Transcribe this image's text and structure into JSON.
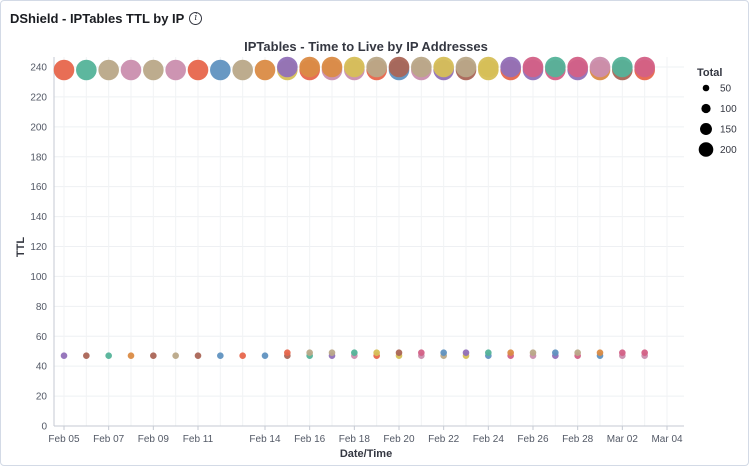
{
  "panel": {
    "title": "DShield - IPTables TTL by IP",
    "info_icon": "info-icon"
  },
  "chart_data": {
    "type": "scatter",
    "title": "IPTables - Time to Live by IP Addresses",
    "xlabel": "Date/Time",
    "ylabel": "TTL",
    "ylim": [
      0,
      240
    ],
    "yticks": [
      0,
      20,
      40,
      60,
      80,
      100,
      120,
      140,
      160,
      180,
      200,
      220,
      240
    ],
    "x": [
      "Feb 05",
      "Feb 06",
      "Feb 07",
      "Feb 08",
      "Feb 09",
      "Feb 10",
      "Feb 11",
      "Feb 12",
      "Feb 13",
      "Feb 14",
      "Feb 15",
      "Feb 16",
      "Feb 17",
      "Feb 18",
      "Feb 19",
      "Feb 20",
      "Feb 21",
      "Feb 22",
      "Feb 23",
      "Feb 24",
      "Feb 25",
      "Feb 26",
      "Feb 27",
      "Feb 28",
      "Mar 01",
      "Mar 02",
      "Mar 03",
      "Mar 04"
    ],
    "xticks": [
      "Feb 05",
      "Feb 07",
      "Feb 09",
      "Feb 11",
      "Feb 14",
      "Feb 16",
      "Feb 18",
      "Feb 20",
      "Feb 22",
      "Feb 24",
      "Feb 26",
      "Feb 28",
      "Mar 02",
      "Mar 04"
    ],
    "grid": true,
    "legend": {
      "title": "Total",
      "position": "right",
      "entries": [
        {
          "label": "50",
          "size": 50
        },
        {
          "label": "100",
          "size": 100
        },
        {
          "label": "150",
          "size": 150
        },
        {
          "label": "200",
          "size": 200
        }
      ]
    },
    "points": [
      {
        "x": "Feb 05",
        "y": 238,
        "size": 180,
        "color": "#e7664c"
      },
      {
        "x": "Feb 05",
        "y": 47,
        "size": 30,
        "color": "#9170b8"
      },
      {
        "x": "Feb 06",
        "y": 238,
        "size": 180,
        "color": "#54b399"
      },
      {
        "x": "Feb 06",
        "y": 47,
        "size": 30,
        "color": "#aa6556"
      },
      {
        "x": "Feb 07",
        "y": 238,
        "size": 180,
        "color": "#b9a888"
      },
      {
        "x": "Feb 07",
        "y": 47,
        "size": 30,
        "color": "#54b399"
      },
      {
        "x": "Feb 08",
        "y": 238,
        "size": 180,
        "color": "#ca8eae"
      },
      {
        "x": "Feb 08",
        "y": 47,
        "size": 30,
        "color": "#da8b45"
      },
      {
        "x": "Feb 09",
        "y": 238,
        "size": 180,
        "color": "#b9a888"
      },
      {
        "x": "Feb 09",
        "y": 47,
        "size": 30,
        "color": "#aa6556"
      },
      {
        "x": "Feb 10",
        "y": 238,
        "size": 180,
        "color": "#ca8eae"
      },
      {
        "x": "Feb 10",
        "y": 47,
        "size": 30,
        "color": "#b9a888"
      },
      {
        "x": "Feb 11",
        "y": 238,
        "size": 180,
        "color": "#e7664c"
      },
      {
        "x": "Feb 11",
        "y": 47,
        "size": 30,
        "color": "#aa6556"
      },
      {
        "x": "Feb 12",
        "y": 238,
        "size": 180,
        "color": "#6092c0"
      },
      {
        "x": "Feb 12",
        "y": 47,
        "size": 30,
        "color": "#6092c0"
      },
      {
        "x": "Feb 13",
        "y": 238,
        "size": 180,
        "color": "#b9a888"
      },
      {
        "x": "Feb 13",
        "y": 47,
        "size": 30,
        "color": "#e7664c"
      },
      {
        "x": "Feb 14",
        "y": 238,
        "size": 180,
        "color": "#da8b45"
      },
      {
        "x": "Feb 14",
        "y": 47,
        "size": 30,
        "color": "#6092c0"
      },
      {
        "x": "Feb 15",
        "y": 238,
        "size": 180,
        "color": "#d6bf57"
      },
      {
        "x": "Feb 15",
        "y": 240,
        "size": 180,
        "color": "#9170b8"
      },
      {
        "x": "Feb 15",
        "y": 47,
        "size": 30,
        "color": "#aa6556"
      },
      {
        "x": "Feb 15",
        "y": 49,
        "size": 30,
        "color": "#e7664c"
      },
      {
        "x": "Feb 16",
        "y": 238,
        "size": 180,
        "color": "#e7664c"
      },
      {
        "x": "Feb 16",
        "y": 240,
        "size": 180,
        "color": "#da8b45"
      },
      {
        "x": "Feb 16",
        "y": 47,
        "size": 30,
        "color": "#54b399"
      },
      {
        "x": "Feb 16",
        "y": 49,
        "size": 30,
        "color": "#b9a888"
      },
      {
        "x": "Feb 17",
        "y": 238,
        "size": 180,
        "color": "#ca8eae"
      },
      {
        "x": "Feb 17",
        "y": 240,
        "size": 180,
        "color": "#da8b45"
      },
      {
        "x": "Feb 17",
        "y": 47,
        "size": 30,
        "color": "#9170b8"
      },
      {
        "x": "Feb 17",
        "y": 49,
        "size": 30,
        "color": "#b9a888"
      },
      {
        "x": "Feb 18",
        "y": 238,
        "size": 180,
        "color": "#ca8eae"
      },
      {
        "x": "Feb 18",
        "y": 240,
        "size": 180,
        "color": "#d6bf57"
      },
      {
        "x": "Feb 18",
        "y": 47,
        "size": 30,
        "color": "#ca8eae"
      },
      {
        "x": "Feb 18",
        "y": 49,
        "size": 30,
        "color": "#54b399"
      },
      {
        "x": "Feb 19",
        "y": 238,
        "size": 180,
        "color": "#e7664c"
      },
      {
        "x": "Feb 19",
        "y": 240,
        "size": 180,
        "color": "#b9a888"
      },
      {
        "x": "Feb 19",
        "y": 47,
        "size": 30,
        "color": "#e7664c"
      },
      {
        "x": "Feb 19",
        "y": 49,
        "size": 30,
        "color": "#d6bf57"
      },
      {
        "x": "Feb 20",
        "y": 238,
        "size": 180,
        "color": "#6092c0"
      },
      {
        "x": "Feb 20",
        "y": 240,
        "size": 180,
        "color": "#aa6556"
      },
      {
        "x": "Feb 20",
        "y": 47,
        "size": 30,
        "color": "#d6bf57"
      },
      {
        "x": "Feb 20",
        "y": 49,
        "size": 30,
        "color": "#aa6556"
      },
      {
        "x": "Feb 21",
        "y": 238,
        "size": 180,
        "color": "#ca8eae"
      },
      {
        "x": "Feb 21",
        "y": 240,
        "size": 180,
        "color": "#b9a888"
      },
      {
        "x": "Feb 21",
        "y": 47,
        "size": 30,
        "color": "#ca8eae"
      },
      {
        "x": "Feb 21",
        "y": 49,
        "size": 30,
        "color": "#d36086"
      },
      {
        "x": "Feb 22",
        "y": 238,
        "size": 180,
        "color": "#9170b8"
      },
      {
        "x": "Feb 22",
        "y": 240,
        "size": 180,
        "color": "#d6bf57"
      },
      {
        "x": "Feb 22",
        "y": 47,
        "size": 30,
        "color": "#b9a888"
      },
      {
        "x": "Feb 22",
        "y": 49,
        "size": 30,
        "color": "#6092c0"
      },
      {
        "x": "Feb 23",
        "y": 238,
        "size": 180,
        "color": "#aa6556"
      },
      {
        "x": "Feb 23",
        "y": 240,
        "size": 180,
        "color": "#b9a888"
      },
      {
        "x": "Feb 23",
        "y": 47,
        "size": 30,
        "color": "#d6bf57"
      },
      {
        "x": "Feb 23",
        "y": 49,
        "size": 30,
        "color": "#9170b8"
      },
      {
        "x": "Feb 24",
        "y": 238,
        "size": 180,
        "color": "#d6bf57"
      },
      {
        "x": "Feb 24",
        "y": 240,
        "size": 180,
        "color": "#d6bf57"
      },
      {
        "x": "Feb 24",
        "y": 47,
        "size": 30,
        "color": "#6092c0"
      },
      {
        "x": "Feb 24",
        "y": 49,
        "size": 30,
        "color": "#54b399"
      },
      {
        "x": "Feb 25",
        "y": 238,
        "size": 180,
        "color": "#e7664c"
      },
      {
        "x": "Feb 25",
        "y": 240,
        "size": 180,
        "color": "#9170b8"
      },
      {
        "x": "Feb 25",
        "y": 47,
        "size": 30,
        "color": "#d36086"
      },
      {
        "x": "Feb 25",
        "y": 49,
        "size": 30,
        "color": "#da8b45"
      },
      {
        "x": "Feb 26",
        "y": 238,
        "size": 180,
        "color": "#9170b8"
      },
      {
        "x": "Feb 26",
        "y": 240,
        "size": 180,
        "color": "#d36086"
      },
      {
        "x": "Feb 26",
        "y": 47,
        "size": 30,
        "color": "#ca8eae"
      },
      {
        "x": "Feb 26",
        "y": 49,
        "size": 30,
        "color": "#b9a888"
      },
      {
        "x": "Feb 27",
        "y": 238,
        "size": 180,
        "color": "#d36086"
      },
      {
        "x": "Feb 27",
        "y": 240,
        "size": 180,
        "color": "#54b399"
      },
      {
        "x": "Feb 27",
        "y": 47,
        "size": 30,
        "color": "#9170b8"
      },
      {
        "x": "Feb 27",
        "y": 49,
        "size": 30,
        "color": "#6092c0"
      },
      {
        "x": "Feb 28",
        "y": 238,
        "size": 180,
        "color": "#9170b8"
      },
      {
        "x": "Feb 28",
        "y": 240,
        "size": 180,
        "color": "#d36086"
      },
      {
        "x": "Feb 28",
        "y": 47,
        "size": 30,
        "color": "#d36086"
      },
      {
        "x": "Feb 28",
        "y": 49,
        "size": 30,
        "color": "#b9a888"
      },
      {
        "x": "Mar 01",
        "y": 238,
        "size": 180,
        "color": "#da8b45"
      },
      {
        "x": "Mar 01",
        "y": 240,
        "size": 180,
        "color": "#ca8eae"
      },
      {
        "x": "Mar 01",
        "y": 47,
        "size": 30,
        "color": "#6092c0"
      },
      {
        "x": "Mar 01",
        "y": 49,
        "size": 30,
        "color": "#da8b45"
      },
      {
        "x": "Mar 02",
        "y": 238,
        "size": 180,
        "color": "#aa6556"
      },
      {
        "x": "Mar 02",
        "y": 240,
        "size": 180,
        "color": "#54b399"
      },
      {
        "x": "Mar 02",
        "y": 47,
        "size": 30,
        "color": "#ca8eae"
      },
      {
        "x": "Mar 02",
        "y": 49,
        "size": 30,
        "color": "#d36086"
      },
      {
        "x": "Mar 03",
        "y": 238,
        "size": 180,
        "color": "#e7664c"
      },
      {
        "x": "Mar 03",
        "y": 240,
        "size": 180,
        "color": "#d36086"
      },
      {
        "x": "Mar 03",
        "y": 47,
        "size": 30,
        "color": "#ca8eae"
      },
      {
        "x": "Mar 03",
        "y": 49,
        "size": 30,
        "color": "#d36086"
      }
    ]
  }
}
